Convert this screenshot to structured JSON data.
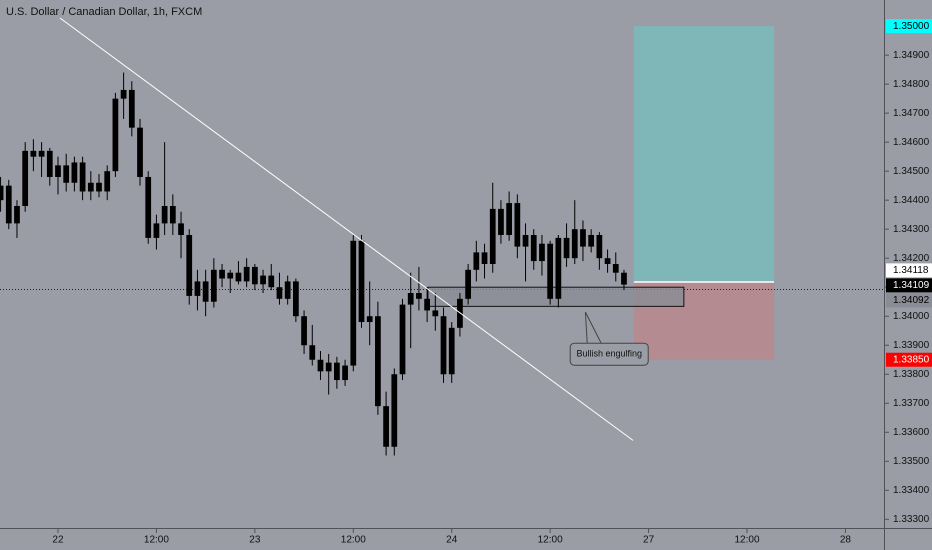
{
  "chart_data": {
    "type": "candlestick",
    "title": "U.S. Dollar / Canadian Dollar, 1h, FXCM",
    "background": "#9a9da5",
    "up_color": "#000000",
    "down_color": "#000000",
    "grid": false,
    "x": [
      -7,
      -6,
      -5,
      -4,
      -3,
      -2,
      -1,
      0,
      1,
      2,
      3,
      4,
      5,
      6,
      7,
      8,
      9,
      10,
      11,
      12,
      13,
      14,
      15,
      16,
      17,
      18,
      19,
      20,
      21,
      22,
      23,
      24,
      25,
      26,
      27,
      28,
      29,
      30,
      31,
      32,
      33,
      34,
      35,
      36,
      37,
      38,
      39,
      40,
      41,
      42,
      43,
      44,
      45,
      46,
      47,
      48,
      49,
      50,
      51,
      52,
      53,
      54,
      55,
      56,
      57,
      58,
      59,
      60,
      61,
      62,
      63,
      64,
      65,
      66,
      67,
      68,
      69
    ],
    "open": [
      1.344,
      1.3445,
      1.3432,
      1.3438,
      1.3457,
      1.3455,
      1.3457,
      1.3448,
      1.3452,
      1.3446,
      1.3453,
      1.3443,
      1.3446,
      1.3443,
      1.345,
      1.3475,
      1.3478,
      1.3465,
      1.3448,
      1.3427,
      1.3432,
      1.3438,
      1.3432,
      1.3428,
      1.3407,
      1.3412,
      1.3405,
      1.3416,
      1.3413,
      1.3415,
      1.3412,
      1.3417,
      1.3411,
      1.3414,
      1.341,
      1.3406,
      1.3412,
      1.34,
      1.339,
      1.3385,
      1.3381,
      1.3384,
      1.3378,
      1.3383,
      1.3426,
      1.3398,
      1.34,
      1.3369,
      1.3355,
      1.338,
      1.3404,
      1.3408,
      1.3406,
      1.3402,
      1.34,
      1.338,
      1.3396,
      1.3406,
      1.3416,
      1.3422,
      1.3418,
      1.3437,
      1.3428,
      1.3439,
      1.3424,
      1.3428,
      1.3419,
      1.3425,
      1.3406,
      1.3427,
      1.342,
      1.343,
      1.3424,
      1.3428,
      1.342,
      1.3418,
      1.3415
    ],
    "high": [
      1.3448,
      1.3447,
      1.344,
      1.346,
      1.3461,
      1.346,
      1.3458,
      1.3455,
      1.3456,
      1.3455,
      1.3455,
      1.345,
      1.3449,
      1.3452,
      1.3477,
      1.3484,
      1.3481,
      1.3468,
      1.345,
      1.3435,
      1.346,
      1.3442,
      1.3436,
      1.343,
      1.3416,
      1.3416,
      1.342,
      1.3418,
      1.3416,
      1.3419,
      1.342,
      1.3418,
      1.3416,
      1.3418,
      1.3415,
      1.3414,
      1.3413,
      1.3402,
      1.3397,
      1.3388,
      1.3387,
      1.3386,
      1.3385,
      1.3428,
      1.3428,
      1.3412,
      1.3405,
      1.3374,
      1.3382,
      1.3406,
      1.3415,
      1.3417,
      1.341,
      1.3408,
      1.3403,
      1.3398,
      1.3408,
      1.3418,
      1.3426,
      1.3425,
      1.3446,
      1.344,
      1.3443,
      1.3442,
      1.3432,
      1.343,
      1.3428,
      1.3426,
      1.3428,
      1.3432,
      1.344,
      1.3433,
      1.343,
      1.3429,
      1.3423,
      1.3422,
      1.3416
    ],
    "low": [
      1.3436,
      1.343,
      1.3427,
      1.3436,
      1.345,
      1.3448,
      1.3445,
      1.3442,
      1.3443,
      1.3443,
      1.344,
      1.344,
      1.3441,
      1.344,
      1.3448,
      1.3468,
      1.3462,
      1.3445,
      1.3425,
      1.3423,
      1.3428,
      1.3428,
      1.342,
      1.3404,
      1.3402,
      1.34,
      1.3403,
      1.341,
      1.3408,
      1.3411,
      1.341,
      1.3409,
      1.3408,
      1.3409,
      1.3404,
      1.3404,
      1.3398,
      1.3387,
      1.3383,
      1.3378,
      1.3373,
      1.3375,
      1.3376,
      1.3381,
      1.3396,
      1.339,
      1.3366,
      1.3352,
      1.3352,
      1.3378,
      1.3389,
      1.3402,
      1.3398,
      1.3395,
      1.3377,
      1.3377,
      1.3393,
      1.3404,
      1.3412,
      1.3413,
      1.3415,
      1.3425,
      1.3426,
      1.342,
      1.3412,
      1.3416,
      1.3414,
      1.3404,
      1.3403,
      1.3417,
      1.3418,
      1.3419,
      1.3422,
      1.3416,
      1.3415,
      1.3412,
      1.3409
    ],
    "close": [
      1.3445,
      1.3432,
      1.3438,
      1.3457,
      1.3455,
      1.3457,
      1.3448,
      1.3452,
      1.3446,
      1.3453,
      1.3443,
      1.3446,
      1.3443,
      1.345,
      1.3475,
      1.3478,
      1.3465,
      1.3448,
      1.3427,
      1.3432,
      1.3438,
      1.3432,
      1.3428,
      1.3407,
      1.3412,
      1.3405,
      1.3416,
      1.3413,
      1.3415,
      1.3412,
      1.3417,
      1.3411,
      1.3414,
      1.341,
      1.3406,
      1.3412,
      1.34,
      1.339,
      1.3385,
      1.3381,
      1.3384,
      1.3378,
      1.3383,
      1.3426,
      1.3398,
      1.34,
      1.3369,
      1.3355,
      1.338,
      1.3404,
      1.3408,
      1.3406,
      1.3402,
      1.34,
      1.338,
      1.3396,
      1.3406,
      1.3416,
      1.3422,
      1.3418,
      1.3437,
      1.3428,
      1.3439,
      1.3424,
      1.3428,
      1.3419,
      1.3425,
      1.3406,
      1.3427,
      1.342,
      1.343,
      1.3424,
      1.3428,
      1.342,
      1.3418,
      1.3415,
      1.34109
    ],
    "xlim": [
      -7.07,
      100.7
    ],
    "ylim": [
      1.3327,
      1.3509
    ],
    "xticks": [
      {
        "value": 0,
        "label": "22"
      },
      {
        "value": 12,
        "label": "12:00"
      },
      {
        "value": 24,
        "label": "23"
      },
      {
        "value": 36,
        "label": "12:00"
      },
      {
        "value": 48,
        "label": "24"
      },
      {
        "value": 60,
        "label": "12:00"
      },
      {
        "value": 72,
        "label": "27"
      },
      {
        "value": 84,
        "label": "12:00"
      },
      {
        "value": 96,
        "label": "28"
      }
    ],
    "yticks": [
      {
        "value": 1.333,
        "label": "1.33300"
      },
      {
        "value": 1.334,
        "label": "1.33400"
      },
      {
        "value": 1.335,
        "label": "1.33500"
      },
      {
        "value": 1.336,
        "label": "1.33600"
      },
      {
        "value": 1.337,
        "label": "1.33700"
      },
      {
        "value": 1.338,
        "label": "1.33800"
      },
      {
        "value": 1.339,
        "label": "1.33900"
      },
      {
        "value": 1.34,
        "label": "1.34000"
      },
      {
        "value": 1.341,
        "label": "1.34100"
      },
      {
        "value": 1.342,
        "label": "1.34200"
      },
      {
        "value": 1.343,
        "label": "1.34300"
      },
      {
        "value": 1.344,
        "label": "1.34400"
      },
      {
        "value": 1.345,
        "label": "1.34500"
      },
      {
        "value": 1.346,
        "label": "1.34600"
      },
      {
        "value": 1.347,
        "label": "1.34700"
      },
      {
        "value": 1.348,
        "label": "1.34800"
      },
      {
        "value": 1.349,
        "label": "1.34900"
      }
    ],
    "trend_line": {
      "x": [
        0.24,
        70.1
      ],
      "y": [
        1.35028,
        1.33572
      ],
      "color": "#ffffff"
    },
    "zone": {
      "x": [
        45.1,
        76.3
      ],
      "y": [
        1.341,
        1.34034
      ],
      "color": "#8a8d95"
    },
    "position": {
      "x_start": 70.2,
      "x_end": 87.3,
      "profit_color": "#7fb6b7",
      "loss_color": "#b38b90",
      "target": {
        "value": 1.35,
        "label": "1.35000",
        "background": "#00ffff",
        "text_color": "#000000"
      },
      "entry": {
        "value": 1.34118,
        "label": "1.34118",
        "background": "#ffffff",
        "text_color": "#000000"
      },
      "stop": {
        "value": 1.3385,
        "label": "1.33850",
        "background": "#ff0000",
        "text_color": "#ffffff"
      }
    },
    "last_price": {
      "value": 1.34109,
      "label": "1.34109",
      "background": "#000000",
      "text_color": "#ffffff"
    },
    "price_line": {
      "value": 1.34092,
      "label": "1.34092",
      "background": "#8a8d95",
      "text_color": "#000000"
    },
    "annotation": {
      "text": "Bullish engulfing",
      "x": 67.2,
      "y": 1.33869,
      "target_x": 64.3,
      "target_y": 1.34014
    }
  }
}
